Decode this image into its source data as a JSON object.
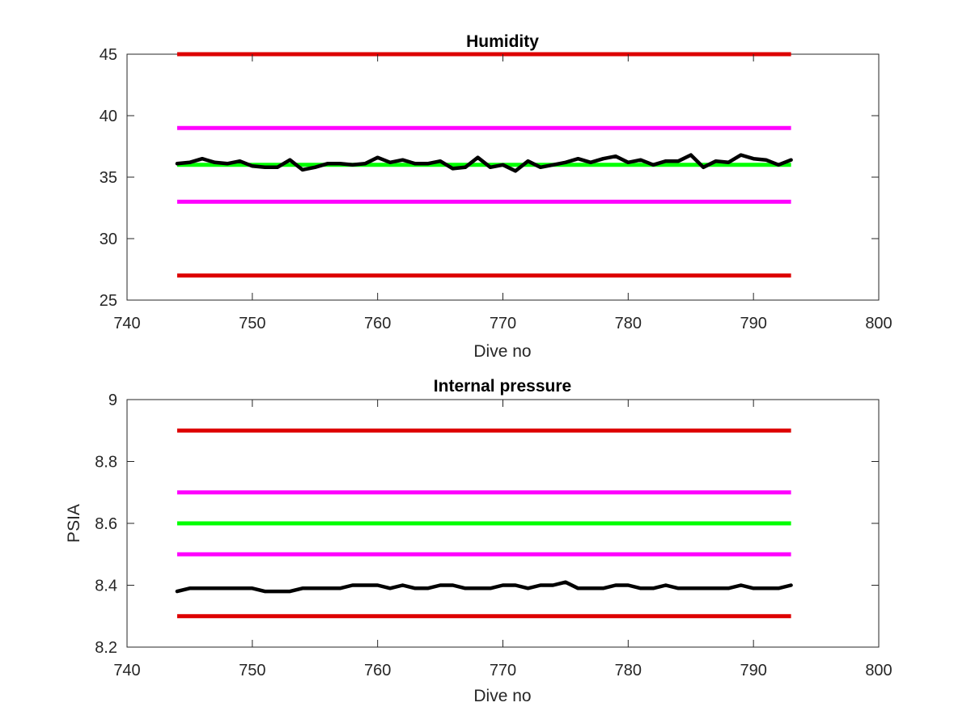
{
  "chart_data": [
    {
      "type": "line",
      "title": "Humidity",
      "xlabel": "Dive no",
      "ylabel": "",
      "xlim": [
        740,
        800
      ],
      "ylim": [
        25,
        45
      ],
      "xticks": [
        "740",
        "750",
        "760",
        "770",
        "780",
        "790",
        "800"
      ],
      "yticks": [
        "25",
        "30",
        "35",
        "40",
        "45"
      ],
      "grid": false,
      "legend": "none",
      "reference_lines": [
        {
          "y": 45,
          "x": [
            744,
            793
          ],
          "color": "#dd0000"
        },
        {
          "y": 39,
          "x": [
            744,
            793
          ],
          "color": "#ff00ff"
        },
        {
          "y": 36,
          "x": [
            744,
            793
          ],
          "color": "#00ff00"
        },
        {
          "y": 33,
          "x": [
            744,
            793
          ],
          "color": "#ff00ff"
        },
        {
          "y": 27,
          "x": [
            744,
            793
          ],
          "color": "#dd0000"
        }
      ],
      "series": [
        {
          "color": "#000000",
          "x": [
            744,
            745,
            746,
            747,
            748,
            749,
            750,
            751,
            752,
            753,
            754,
            755,
            756,
            757,
            758,
            759,
            760,
            761,
            762,
            763,
            764,
            765,
            766,
            767,
            768,
            769,
            770,
            771,
            772,
            773,
            774,
            775,
            776,
            777,
            778,
            779,
            780,
            781,
            782,
            783,
            784,
            785,
            786,
            787,
            788,
            789,
            790,
            791,
            792,
            793
          ],
          "y": [
            36.1,
            36.2,
            36.5,
            36.2,
            36.1,
            36.3,
            35.9,
            35.8,
            35.8,
            36.4,
            35.6,
            35.8,
            36.1,
            36.1,
            36.0,
            36.1,
            36.6,
            36.2,
            36.4,
            36.1,
            36.1,
            36.3,
            35.7,
            35.8,
            36.6,
            35.8,
            36.0,
            35.5,
            36.3,
            35.8,
            36.0,
            36.2,
            36.5,
            36.2,
            36.5,
            36.7,
            36.2,
            36.4,
            36.0,
            36.3,
            36.3,
            36.8,
            35.8,
            36.3,
            36.2,
            36.8,
            36.5,
            36.4,
            36.0,
            36.4
          ]
        }
      ]
    },
    {
      "type": "line",
      "title": "Internal pressure",
      "xlabel": "Dive no",
      "ylabel": "PSIA",
      "xlim": [
        740,
        800
      ],
      "ylim": [
        8.2,
        9.0
      ],
      "xticks": [
        "740",
        "750",
        "760",
        "770",
        "780",
        "790",
        "800"
      ],
      "yticks": [
        "8.2",
        "8.4",
        "8.6",
        "8.8",
        "9"
      ],
      "grid": false,
      "legend": "none",
      "reference_lines": [
        {
          "y": 8.9,
          "x": [
            744,
            793
          ],
          "color": "#dd0000"
        },
        {
          "y": 8.7,
          "x": [
            744,
            793
          ],
          "color": "#ff00ff"
        },
        {
          "y": 8.6,
          "x": [
            744,
            793
          ],
          "color": "#00ff00"
        },
        {
          "y": 8.5,
          "x": [
            744,
            793
          ],
          "color": "#ff00ff"
        },
        {
          "y": 8.3,
          "x": [
            744,
            793
          ],
          "color": "#dd0000"
        }
      ],
      "series": [
        {
          "color": "#000000",
          "x": [
            744,
            745,
            746,
            747,
            748,
            749,
            750,
            751,
            752,
            753,
            754,
            755,
            756,
            757,
            758,
            759,
            760,
            761,
            762,
            763,
            764,
            765,
            766,
            767,
            768,
            769,
            770,
            771,
            772,
            773,
            774,
            775,
            776,
            777,
            778,
            779,
            780,
            781,
            782,
            783,
            784,
            785,
            786,
            787,
            788,
            789,
            790,
            791,
            792,
            793
          ],
          "y": [
            8.38,
            8.39,
            8.39,
            8.39,
            8.39,
            8.39,
            8.39,
            8.38,
            8.38,
            8.38,
            8.39,
            8.39,
            8.39,
            8.39,
            8.4,
            8.4,
            8.4,
            8.39,
            8.4,
            8.39,
            8.39,
            8.4,
            8.4,
            8.39,
            8.39,
            8.39,
            8.4,
            8.4,
            8.39,
            8.4,
            8.4,
            8.41,
            8.39,
            8.39,
            8.39,
            8.4,
            8.4,
            8.39,
            8.39,
            8.4,
            8.39,
            8.39,
            8.39,
            8.39,
            8.39,
            8.4,
            8.39,
            8.39,
            8.39,
            8.4
          ]
        }
      ]
    }
  ]
}
